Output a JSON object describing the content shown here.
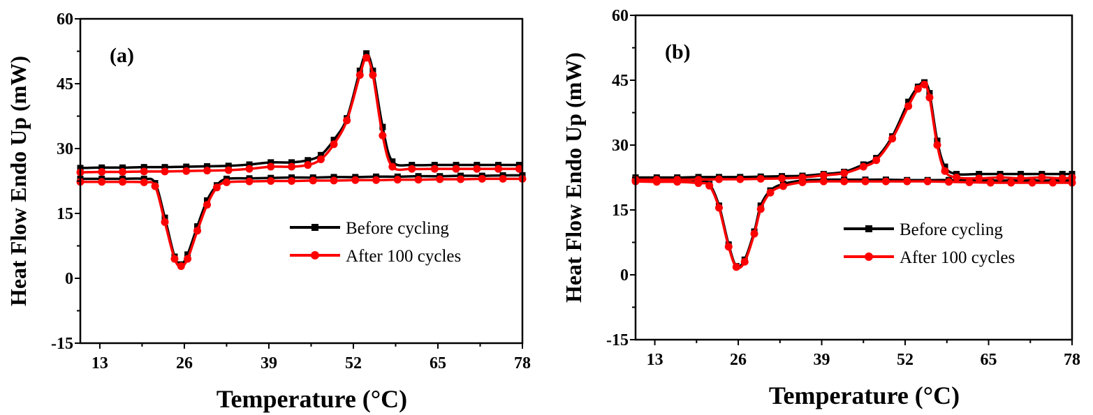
{
  "chart_data": [
    {
      "type": "line",
      "panel_label": "(a)",
      "xlabel": "Temperature (°C)",
      "ylabel": "Heat Flow Endo Up (mW)",
      "xlim": [
        10,
        78
      ],
      "ylim": [
        -15,
        60
      ],
      "xticks": [
        13,
        26,
        39,
        52,
        65,
        78
      ],
      "yticks": [
        -15,
        0,
        15,
        30,
        45,
        60
      ],
      "grid": false,
      "legend": "center-right",
      "series": [
        {
          "name": "Before cycling",
          "color": "#000000",
          "marker": "square",
          "heating": [
            [
              10,
              25.5
            ],
            [
              13.3,
              25.6
            ],
            [
              16.5,
              25.6
            ],
            [
              19.8,
              25.7
            ],
            [
              23,
              25.7
            ],
            [
              26.3,
              25.8
            ],
            [
              29.5,
              25.9
            ],
            [
              32.8,
              26
            ],
            [
              36,
              26.3
            ],
            [
              39.3,
              26.8
            ],
            [
              42.5,
              26.8
            ],
            [
              45,
              27.3
            ],
            [
              47,
              28.5
            ],
            [
              49,
              32
            ],
            [
              51,
              37
            ],
            [
              53,
              48
            ],
            [
              54,
              52
            ],
            [
              55,
              48
            ],
            [
              56.5,
              35
            ],
            [
              58,
              27
            ],
            [
              61,
              26.2
            ],
            [
              64.5,
              26.2
            ],
            [
              67.8,
              26.2
            ],
            [
              71,
              26.2
            ],
            [
              74.3,
              26.2
            ],
            [
              77.5,
              26.2
            ]
          ],
          "cooling": [
            [
              10,
              23
            ],
            [
              13.3,
              23
            ],
            [
              16.5,
              23
            ],
            [
              19.8,
              23
            ],
            [
              21.5,
              22
            ],
            [
              23,
              14
            ],
            [
              24.5,
              5
            ],
            [
              25.5,
              3.2
            ],
            [
              26.5,
              5.5
            ],
            [
              28,
              12
            ],
            [
              29.5,
              18
            ],
            [
              31,
              21.5
            ],
            [
              32.5,
              23
            ],
            [
              36,
              23.1
            ],
            [
              39.3,
              23.2
            ],
            [
              42.5,
              23.3
            ],
            [
              45.8,
              23.3
            ],
            [
              49,
              23.4
            ],
            [
              52.3,
              23.4
            ],
            [
              55.5,
              23.5
            ],
            [
              58.8,
              23.5
            ],
            [
              62,
              23.6
            ],
            [
              65.3,
              23.6
            ],
            [
              68.5,
              23.7
            ],
            [
              71.8,
              23.7
            ],
            [
              75,
              23.8
            ],
            [
              78,
              23.8
            ]
          ]
        },
        {
          "name": "After 100 cycles",
          "color": "#ff0000",
          "marker": "circle",
          "heating": [
            [
              10,
              24.5
            ],
            [
              13.3,
              24.6
            ],
            [
              16.5,
              24.6
            ],
            [
              19.8,
              24.7
            ],
            [
              23,
              24.7
            ],
            [
              26.3,
              24.8
            ],
            [
              29.5,
              24.9
            ],
            [
              32.8,
              25
            ],
            [
              36,
              25.3
            ],
            [
              39.3,
              25.8
            ],
            [
              42.5,
              25.8
            ],
            [
              45,
              26.2
            ],
            [
              47,
              27.5
            ],
            [
              49,
              31
            ],
            [
              51,
              36.5
            ],
            [
              53,
              47
            ],
            [
              54,
              51
            ],
            [
              55,
              47
            ],
            [
              56.5,
              33
            ],
            [
              58,
              25.8
            ],
            [
              61,
              25.3
            ],
            [
              64.5,
              25.3
            ],
            [
              67.8,
              25.3
            ],
            [
              71,
              25.3
            ],
            [
              74.3,
              25.3
            ],
            [
              77.5,
              25.3
            ]
          ],
          "cooling": [
            [
              10,
              22.3
            ],
            [
              13.3,
              22.3
            ],
            [
              16.5,
              22.3
            ],
            [
              19.8,
              22.2
            ],
            [
              21.5,
              21.3
            ],
            [
              23,
              13
            ],
            [
              24.5,
              4.5
            ],
            [
              25.5,
              2.8
            ],
            [
              26.5,
              4.5
            ],
            [
              28,
              11
            ],
            [
              29.5,
              17
            ],
            [
              31,
              21
            ],
            [
              32.5,
              22.2
            ],
            [
              36,
              22.4
            ],
            [
              39.3,
              22.5
            ],
            [
              42.5,
              22.5
            ],
            [
              45.8,
              22.6
            ],
            [
              49,
              22.6
            ],
            [
              52.3,
              22.7
            ],
            [
              55.5,
              22.7
            ],
            [
              58.8,
              22.8
            ],
            [
              62,
              22.8
            ],
            [
              65.3,
              22.9
            ],
            [
              68.5,
              22.9
            ],
            [
              71.8,
              23
            ],
            [
              75,
              23
            ],
            [
              78,
              23
            ]
          ]
        }
      ]
    },
    {
      "type": "line",
      "panel_label": "(b)",
      "xlabel": "Temperature (°C)",
      "ylabel": "Heat Flow Endo Up (mW)",
      "xlim": [
        10,
        78
      ],
      "ylim": [
        -15,
        60
      ],
      "xticks": [
        13,
        26,
        39,
        52,
        65,
        78
      ],
      "yticks": [
        -15,
        0,
        15,
        30,
        45,
        60
      ],
      "grid": false,
      "legend": "center-right",
      "series": [
        {
          "name": "Before cycling",
          "color": "#000000",
          "marker": "square",
          "heating": [
            [
              10,
              22.5
            ],
            [
              13.3,
              22.5
            ],
            [
              16.5,
              22.5
            ],
            [
              19.8,
              22.6
            ],
            [
              23,
              22.6
            ],
            [
              26.3,
              22.6
            ],
            [
              29.5,
              22.7
            ],
            [
              32.8,
              22.8
            ],
            [
              36,
              22.9
            ],
            [
              39.3,
              23.3
            ],
            [
              42.5,
              23.8
            ],
            [
              45.5,
              25.5
            ],
            [
              47.5,
              27
            ],
            [
              50,
              32
            ],
            [
              52.5,
              40
            ],
            [
              54,
              43.5
            ],
            [
              55,
              44.5
            ],
            [
              55.8,
              42
            ],
            [
              57,
              31
            ],
            [
              58.2,
              25
            ],
            [
              60,
              23.3
            ],
            [
              63.5,
              23.3
            ],
            [
              66.8,
              23.3
            ],
            [
              70,
              23.3
            ],
            [
              73.3,
              23.3
            ],
            [
              76.5,
              23.3
            ],
            [
              78,
              23.3
            ]
          ],
          "cooling": [
            [
              10,
              22
            ],
            [
              13.3,
              22
            ],
            [
              16.5,
              22
            ],
            [
              19.8,
              21.8
            ],
            [
              21.5,
              21
            ],
            [
              23,
              16
            ],
            [
              24.5,
              7
            ],
            [
              25.7,
              2
            ],
            [
              27,
              3.5
            ],
            [
              28.5,
              10
            ],
            [
              29.5,
              16
            ],
            [
              31,
              19.5
            ],
            [
              33,
              21
            ],
            [
              36,
              21.8
            ],
            [
              39.3,
              22
            ],
            [
              42.5,
              22
            ],
            [
              45.8,
              22
            ],
            [
              49,
              22
            ],
            [
              52.3,
              21.9
            ],
            [
              55.5,
              21.9
            ],
            [
              58.8,
              21.9
            ],
            [
              62,
              21.8
            ],
            [
              65.3,
              21.8
            ],
            [
              68.5,
              21.8
            ],
            [
              71.8,
              21.8
            ],
            [
              75,
              21.8
            ],
            [
              78,
              21.8
            ]
          ]
        },
        {
          "name": "After 100 cycles",
          "color": "#ff0000",
          "marker": "circle",
          "heating": [
            [
              10,
              22
            ],
            [
              13.3,
              22
            ],
            [
              16.5,
              22
            ],
            [
              19.8,
              22
            ],
            [
              23,
              22.1
            ],
            [
              26.3,
              22.1
            ],
            [
              29.5,
              22.2
            ],
            [
              32.8,
              22.3
            ],
            [
              36,
              22.5
            ],
            [
              39.3,
              23
            ],
            [
              42.5,
              23.5
            ],
            [
              45.5,
              25
            ],
            [
              47.5,
              26.5
            ],
            [
              50,
              31.5
            ],
            [
              52.5,
              39
            ],
            [
              54,
              43
            ],
            [
              55,
              44
            ],
            [
              55.8,
              41
            ],
            [
              57,
              30
            ],
            [
              58.2,
              24
            ],
            [
              60,
              22.5
            ],
            [
              63.5,
              22.3
            ],
            [
              66.8,
              22.5
            ],
            [
              70,
              22.3
            ],
            [
              73.3,
              22.5
            ],
            [
              76.5,
              22.3
            ],
            [
              78,
              22.5
            ]
          ],
          "cooling": [
            [
              10,
              21.6
            ],
            [
              13.3,
              21.5
            ],
            [
              16.5,
              21.5
            ],
            [
              19.8,
              21.2
            ],
            [
              21.5,
              20.6
            ],
            [
              23,
              15.5
            ],
            [
              24.5,
              6.5
            ],
            [
              25.7,
              1.8
            ],
            [
              27,
              3
            ],
            [
              28.5,
              9.5
            ],
            [
              29.5,
              15.2
            ],
            [
              31,
              19
            ],
            [
              33,
              20.5
            ],
            [
              36,
              21.4
            ],
            [
              39.3,
              21.6
            ],
            [
              42.5,
              21.6
            ],
            [
              45.8,
              21.6
            ],
            [
              49,
              21.6
            ],
            [
              52.3,
              21.6
            ],
            [
              55.5,
              21.6
            ],
            [
              58.8,
              21.5
            ],
            [
              62,
              21.4
            ],
            [
              65.3,
              21.3
            ],
            [
              68.5,
              21.3
            ],
            [
              71.8,
              21.3
            ],
            [
              75,
              21.3
            ],
            [
              78,
              21.3
            ]
          ]
        }
      ]
    }
  ]
}
